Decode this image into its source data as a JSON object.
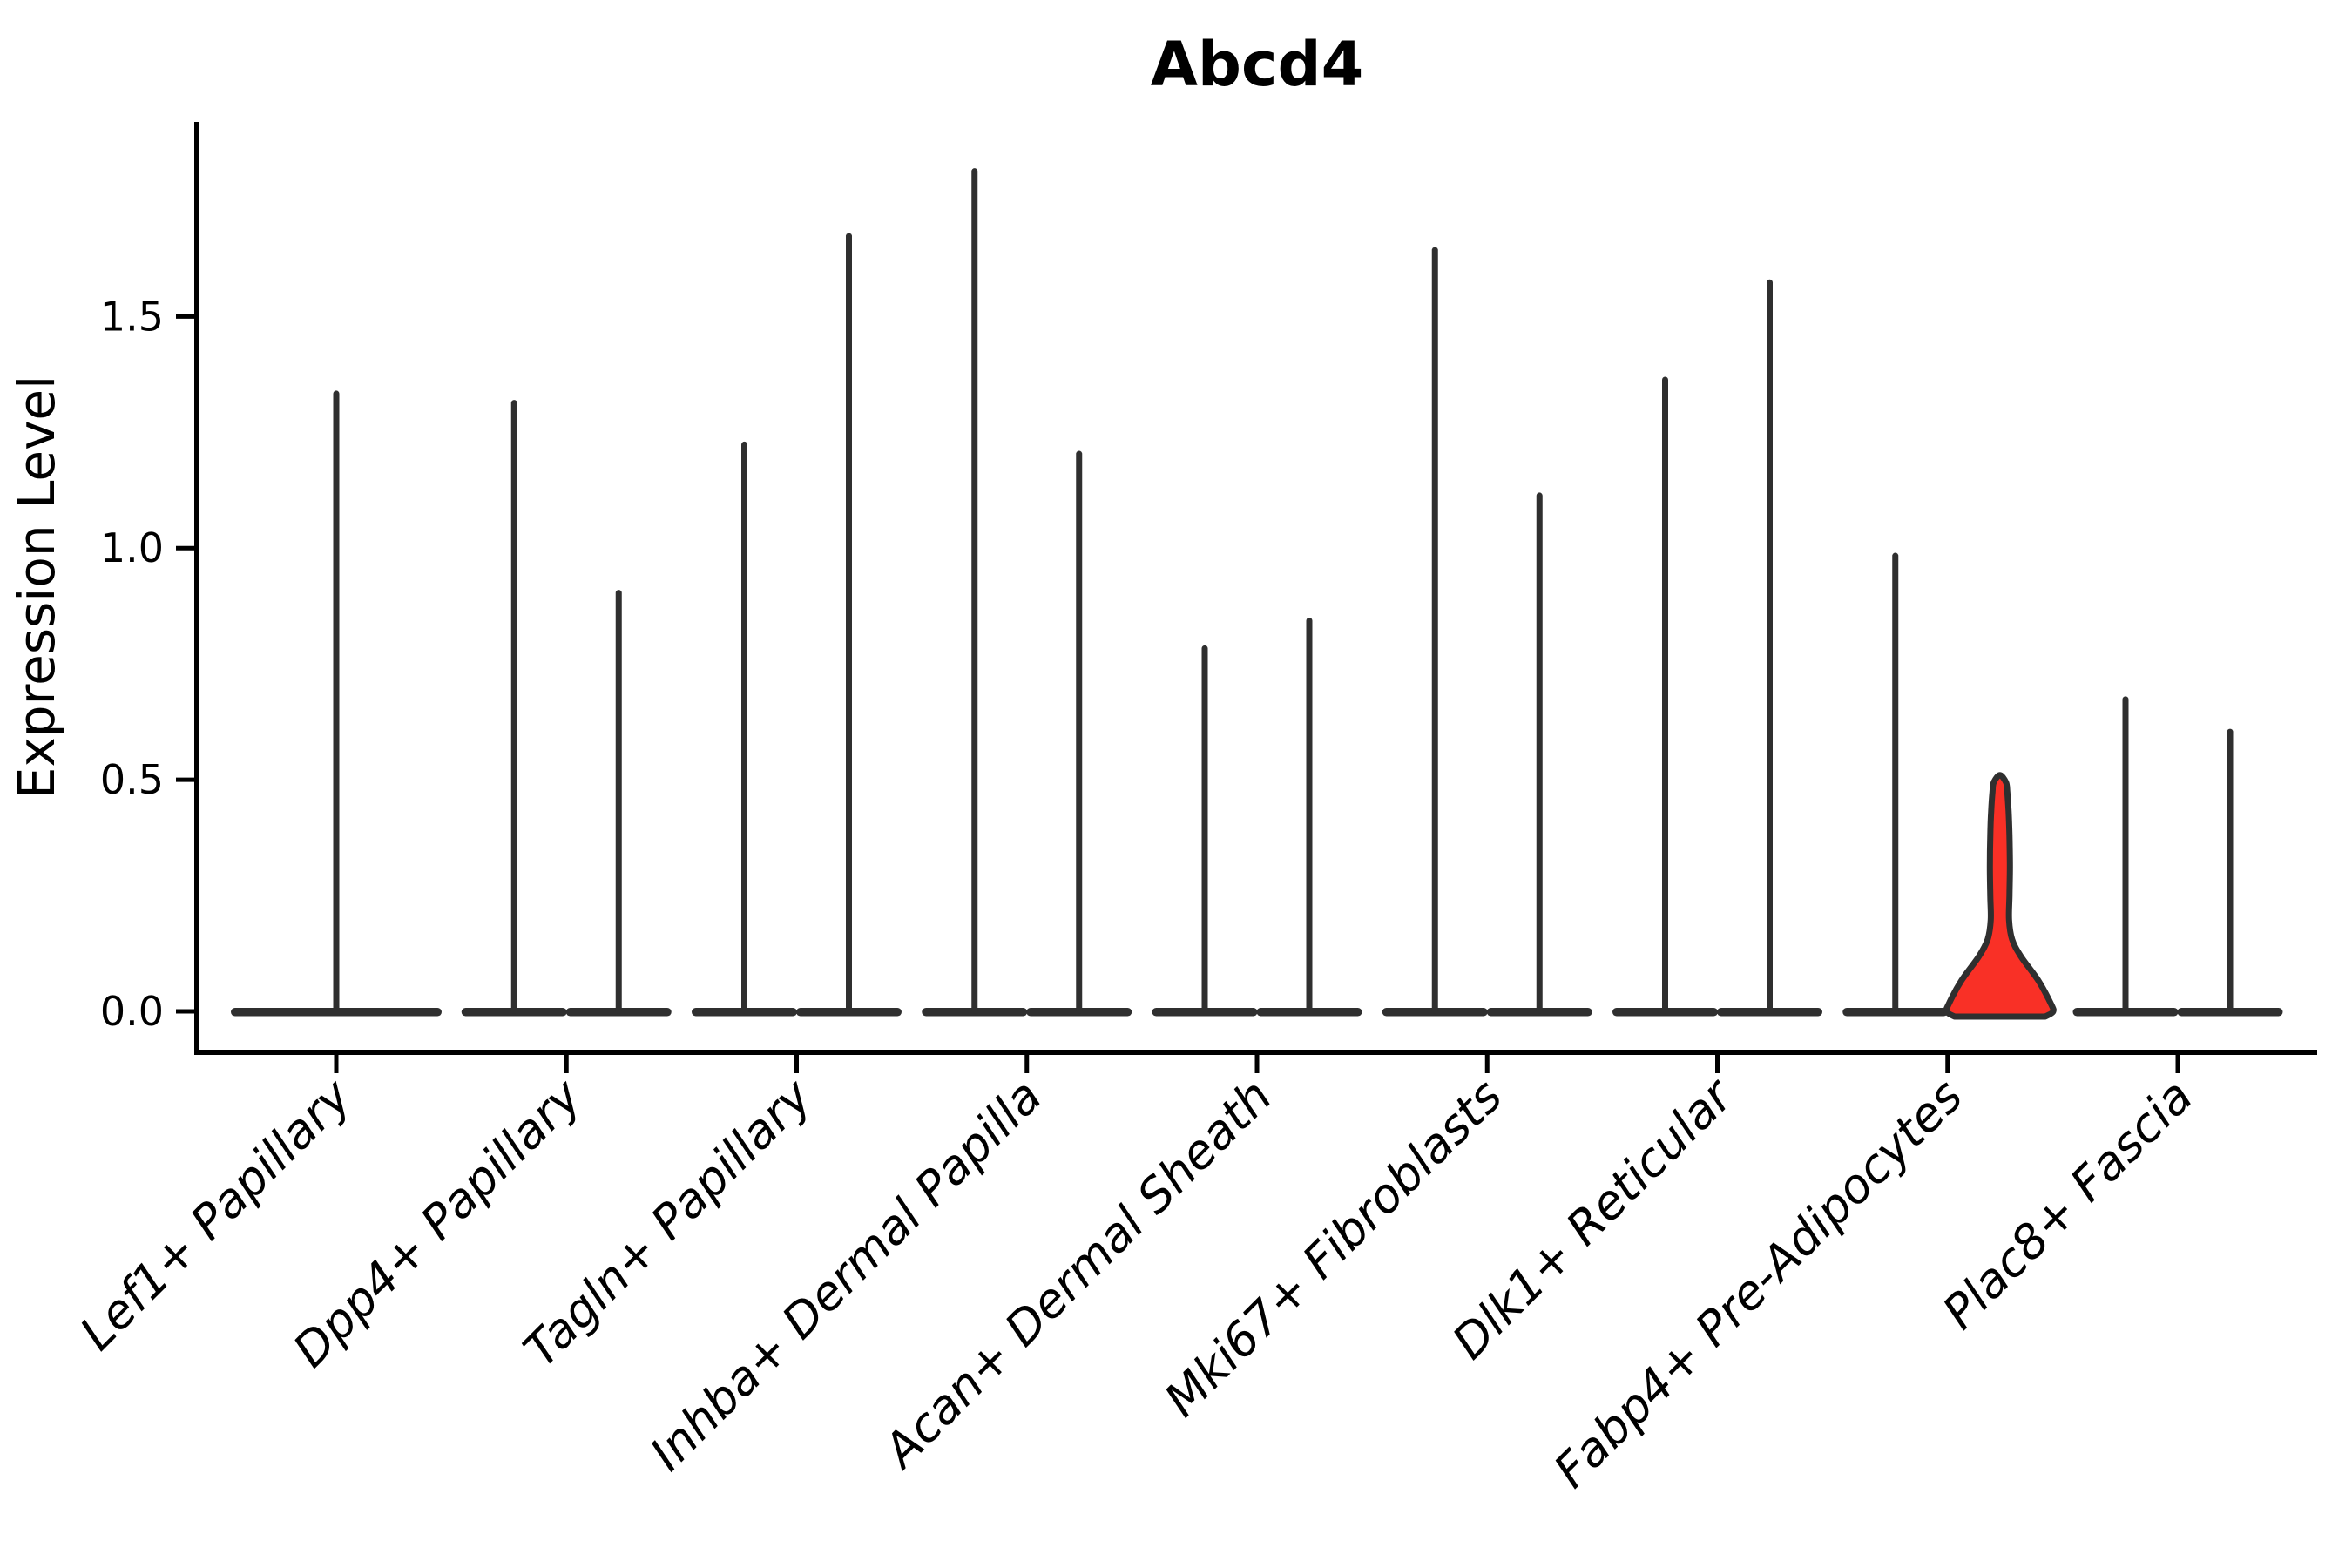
{
  "chart_data": {
    "type": "violin",
    "title": "Abcd4",
    "ylabel": "Expression Level",
    "xlabel": "",
    "ylim": [
      0,
      1.92
    ],
    "yticks": [
      0.0,
      0.5,
      1.0,
      1.5
    ],
    "ytick_labels": [
      "0.0",
      "0.5",
      "1.0",
      "1.5"
    ],
    "grid": false,
    "legend": "none",
    "categories": [
      "Lef1+ Papillary",
      "Dpp4+ Papillary",
      "Tagln+ Papillary",
      "Inhba+ Dermal Papilla",
      "Acan+ Dermal Sheath",
      "Mki67+ Fibroblasts",
      "Dlk1+ Reticular",
      "Fabp4+ Pre-Adipocytes",
      "Plac8+ Fascia"
    ],
    "violin_max_values": [
      [
        1.34
      ],
      [
        1.32,
        0.91
      ],
      [
        1.23,
        1.68
      ],
      [
        1.82,
        1.21
      ],
      [
        0.79,
        0.85
      ],
      [
        1.65,
        1.12
      ],
      [
        1.37,
        1.58
      ],
      [
        0.99,
        0.51
      ],
      [
        0.68,
        0.61
      ]
    ],
    "highlight": {
      "category_index": 7,
      "category": "Fabp4+ Pre-Adipocytes",
      "violin_index": 1,
      "max": 0.51,
      "fill_color": "#f93026"
    },
    "outline_color": "#2f2f2f",
    "axis_color": "#000000"
  }
}
